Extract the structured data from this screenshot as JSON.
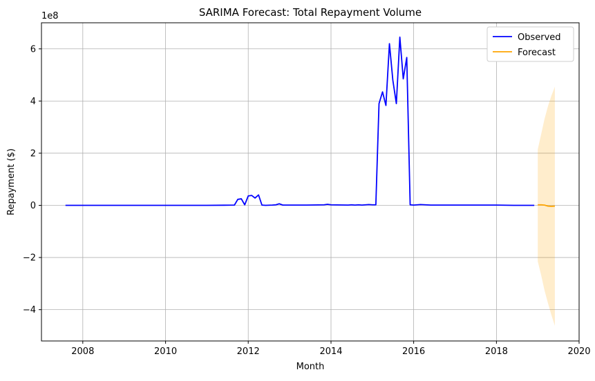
{
  "chart_data": {
    "type": "line",
    "title": "SARIMA Forecast: Total Repayment Volume",
    "xlabel": "Month",
    "ylabel": "Repayment ($)",
    "y_offset_label": "1e8",
    "y_unit_scale": 100000000,
    "xlim": [
      "2007-01-01",
      "2020-01-01"
    ],
    "ylim": [
      -520000000,
      700000000
    ],
    "x_ticks": [
      "2008",
      "2010",
      "2012",
      "2014",
      "2016",
      "2018",
      "2020"
    ],
    "y_ticks": [
      "−4",
      "−2",
      "0",
      "2",
      "4",
      "6"
    ],
    "grid": true,
    "legend_position": "top-right",
    "series": [
      {
        "name": "Observed",
        "color": "#0000ff",
        "x": [
          "2007-08-01",
          "2008-01-01",
          "2009-01-01",
          "2010-01-01",
          "2011-01-01",
          "2011-06-01",
          "2011-09-01",
          "2011-10-01",
          "2011-11-01",
          "2011-12-01",
          "2012-01-01",
          "2012-02-01",
          "2012-03-01",
          "2012-04-01",
          "2012-05-01",
          "2012-06-01",
          "2012-08-01",
          "2012-09-01",
          "2012-10-01",
          "2012-11-01",
          "2013-01-01",
          "2013-06-01",
          "2013-11-01",
          "2013-12-01",
          "2014-01-01",
          "2014-06-01",
          "2014-07-01",
          "2014-08-01",
          "2014-09-01",
          "2014-10-01",
          "2014-11-01",
          "2014-12-01",
          "2015-01-01",
          "2015-02-01",
          "2015-03-01",
          "2015-04-01",
          "2015-05-01",
          "2015-06-01",
          "2015-07-01",
          "2015-08-01",
          "2015-09-01",
          "2015-10-01",
          "2015-11-01",
          "2015-12-01",
          "2016-01-01",
          "2016-03-01",
          "2016-06-01",
          "2017-01-01",
          "2017-06-01",
          "2018-01-01",
          "2018-06-01",
          "2018-12-01"
        ],
        "y": [
          0,
          0,
          0,
          0,
          0,
          500000,
          1000000,
          23000000,
          25000000,
          2000000,
          36000000,
          38000000,
          28000000,
          40000000,
          1000000,
          0,
          1000000,
          2000000,
          6000000,
          1000000,
          1000000,
          1000000,
          2000000,
          4000000,
          2000000,
          1000000,
          2000000,
          1000000,
          2000000,
          1000000,
          2000000,
          3000000,
          2000000,
          2000000,
          390000000,
          435000000,
          383000000,
          620000000,
          480000000,
          390000000,
          645000000,
          485000000,
          567000000,
          2000000,
          1000000,
          3000000,
          1000000,
          1000000,
          1000000,
          1000000,
          0,
          0
        ]
      },
      {
        "name": "Forecast",
        "color": "#ffa500",
        "x": [
          "2019-01-01",
          "2019-02-01",
          "2019-03-01",
          "2019-04-01",
          "2019-05-01",
          "2019-06-01"
        ],
        "y": [
          2000000,
          2000000,
          1000000,
          -3000000,
          -4000000,
          -3000000
        ],
        "ci_lower": [
          -215000000,
          -270000000,
          -325000000,
          -375000000,
          -420000000,
          -462000000
        ],
        "ci_upper": [
          215000000,
          275000000,
          330000000,
          380000000,
          420000000,
          455000000
        ],
        "ci_color": "#ffa500"
      }
    ]
  }
}
